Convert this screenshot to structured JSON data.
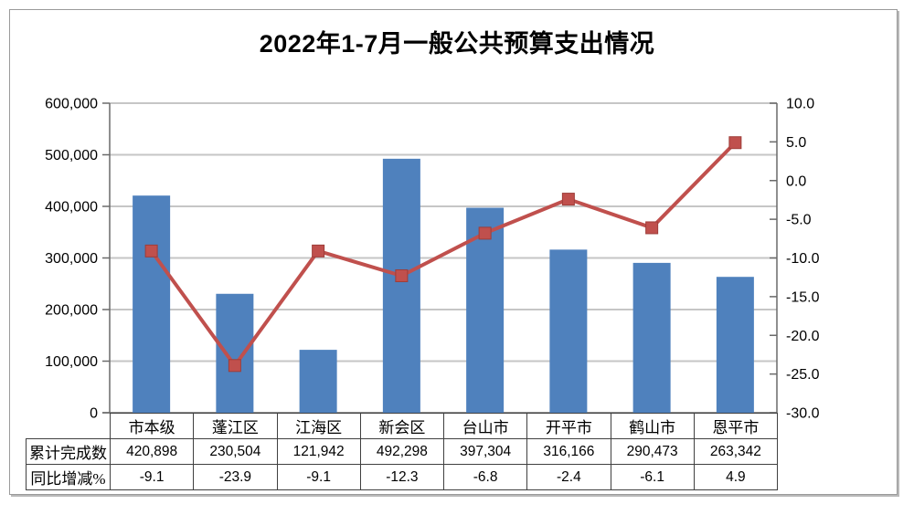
{
  "chart_data": {
    "type": "bar+line",
    "title": "2022年1-7月一般公共预算支出情况",
    "categories": [
      "市本级",
      "蓬江区",
      "江海区",
      "新会区",
      "台山市",
      "开平市",
      "鹤山市",
      "恩平市"
    ],
    "series": [
      {
        "name": "累计完成数",
        "chart": "bar",
        "axis": "left",
        "color": "#4f81bd",
        "values": [
          420898,
          230504,
          121942,
          492298,
          397304,
          316166,
          290473,
          263342
        ]
      },
      {
        "name": "同比增减%",
        "chart": "line",
        "axis": "right",
        "color": "#c0504d",
        "marker": "square",
        "values": [
          -9.1,
          -23.9,
          -9.1,
          -12.3,
          -6.8,
          -2.4,
          -6.1,
          4.9
        ]
      }
    ],
    "left_axis": {
      "min": 0,
      "max": 600000,
      "step": 100000,
      "tick_labels": [
        "0",
        "100,000",
        "200,000",
        "300,000",
        "400,000",
        "500,000",
        "600,000"
      ]
    },
    "right_axis": {
      "min": -30,
      "max": 10,
      "step": 5,
      "tick_labels": [
        "-30.0",
        "-25.0",
        "-20.0",
        "-15.0",
        "-10.0",
        "-5.0",
        "0.0",
        "5.0",
        "10.0"
      ]
    },
    "grid": true,
    "legend_position": "none"
  },
  "data_table": {
    "rows": [
      {
        "label": "累计完成数",
        "values": [
          "420,898",
          "230,504",
          "121,942",
          "492,298",
          "397,304",
          "316,166",
          "290,473",
          "263,342"
        ]
      },
      {
        "label": "同比增减%",
        "values": [
          "-9.1",
          "-23.9",
          "-9.1",
          "-12.3",
          "-6.8",
          "-2.4",
          "-6.1",
          "4.9"
        ]
      }
    ]
  },
  "colors": {
    "bar": "#4f81bd",
    "line": "#c0504d",
    "marker_border": "#9e3d39",
    "grid": "#c6c6c6",
    "axis": "#6a6a6a",
    "table_border": "#404040",
    "frame_border": "#9a9a9a"
  }
}
